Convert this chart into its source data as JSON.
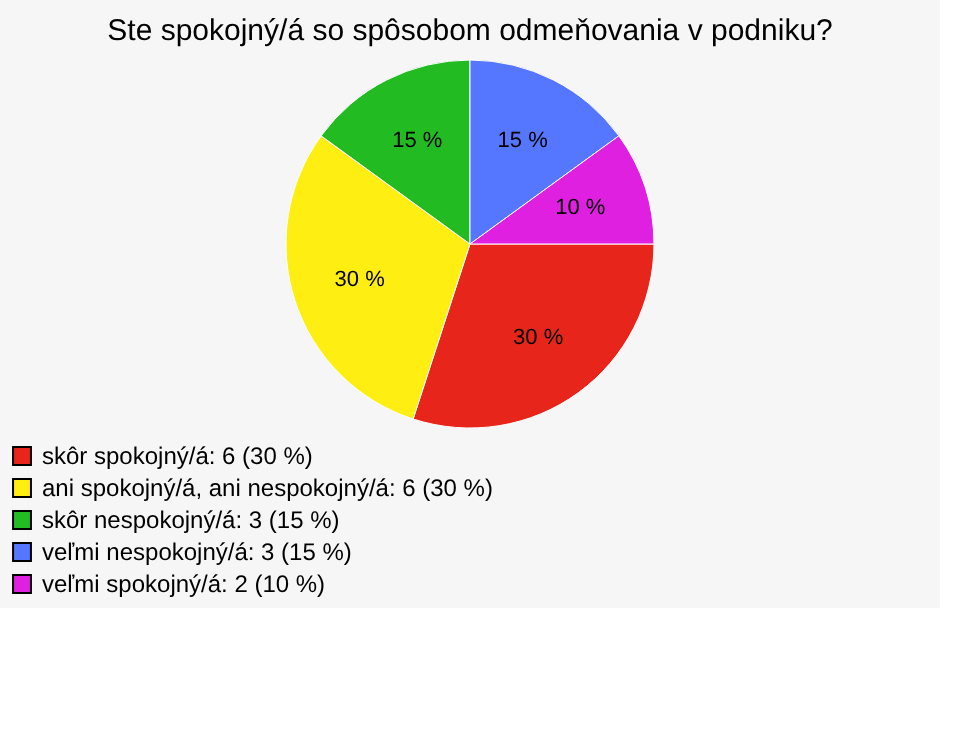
{
  "chart_data": {
    "type": "pie",
    "title": "Ste spokojný/á so spôsobom odmeňovania v podniku?",
    "categories": [
      "skôr spokojný/á: 6 (30 %)",
      "ani spokojný/á, ani nespokojný/á: 6 (30 %)",
      "skôr nespokojný/á: 3 (15 %)",
      "veľmi nespokojný/á: 3 (15 %)",
      "veľmi spokojný/á: 2 (10 %)"
    ],
    "values": [
      30,
      30,
      15,
      15,
      10
    ],
    "value_labels": [
      "30 %",
      "30 %",
      "15 %",
      "15 %",
      "10 %"
    ],
    "colors": [
      "#e8251a",
      "#ffee11",
      "#22bb22",
      "#5577ff",
      "#e020e0"
    ],
    "legend": "bottom left"
  }
}
